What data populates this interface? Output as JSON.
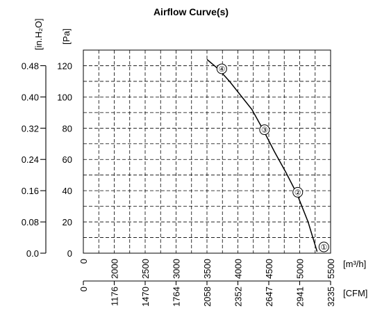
{
  "chart_data": {
    "type": "line",
    "title": "Airflow Curve(s)",
    "x_unit_primary": "[m³/h]",
    "x_unit_secondary": "[CFM]",
    "y_unit_primary": "[Pa]",
    "y_unit_secondary": "[in.H₂O]",
    "xlim": [
      0,
      5500
    ],
    "ylim": [
      0,
      130
    ],
    "grid": true,
    "x_ticks_m3h": [
      "0",
      "2000",
      "2500",
      "3000",
      "3500",
      "4000",
      "4500",
      "5000",
      "5500"
    ],
    "x_tick_values_m3h": [
      0,
      2000,
      2500,
      3000,
      3500,
      4000,
      4500,
      5000,
      5500
    ],
    "x_ticks_cfm": [
      "0",
      "1176",
      "1470",
      "1764",
      "2058",
      "2352",
      "2647",
      "2941",
      "3235"
    ],
    "y_ticks_pa": [
      "0",
      "20",
      "40",
      "60",
      "80",
      "100",
      "120"
    ],
    "y_tick_values_pa": [
      0,
      20,
      40,
      60,
      80,
      100,
      120
    ],
    "y_ticks_inh2o": [
      "0.0",
      "0.08",
      "0.16",
      "0.24",
      "0.32",
      "0.40",
      "0.48"
    ],
    "series": [
      {
        "points": [
          {
            "x": 2750,
            "y": 124
          },
          {
            "x": 3000,
            "y": 118
          },
          {
            "x": 3250,
            "y": 110
          },
          {
            "x": 3500,
            "y": 101
          },
          {
            "x": 3750,
            "y": 92
          },
          {
            "x": 4000,
            "y": 79
          },
          {
            "x": 4250,
            "y": 65
          },
          {
            "x": 4500,
            "y": 52
          },
          {
            "x": 4750,
            "y": 38
          },
          {
            "x": 5000,
            "y": 20
          },
          {
            "x": 5200,
            "y": 1
          }
        ]
      }
    ],
    "operating_points": [
      {
        "label": "①",
        "x": 5350,
        "y": 4
      },
      {
        "label": "②",
        "x": 4770,
        "y": 39
      },
      {
        "label": "③",
        "x": 4030,
        "y": 79
      },
      {
        "label": "④",
        "x": 3080,
        "y": 118
      }
    ]
  }
}
